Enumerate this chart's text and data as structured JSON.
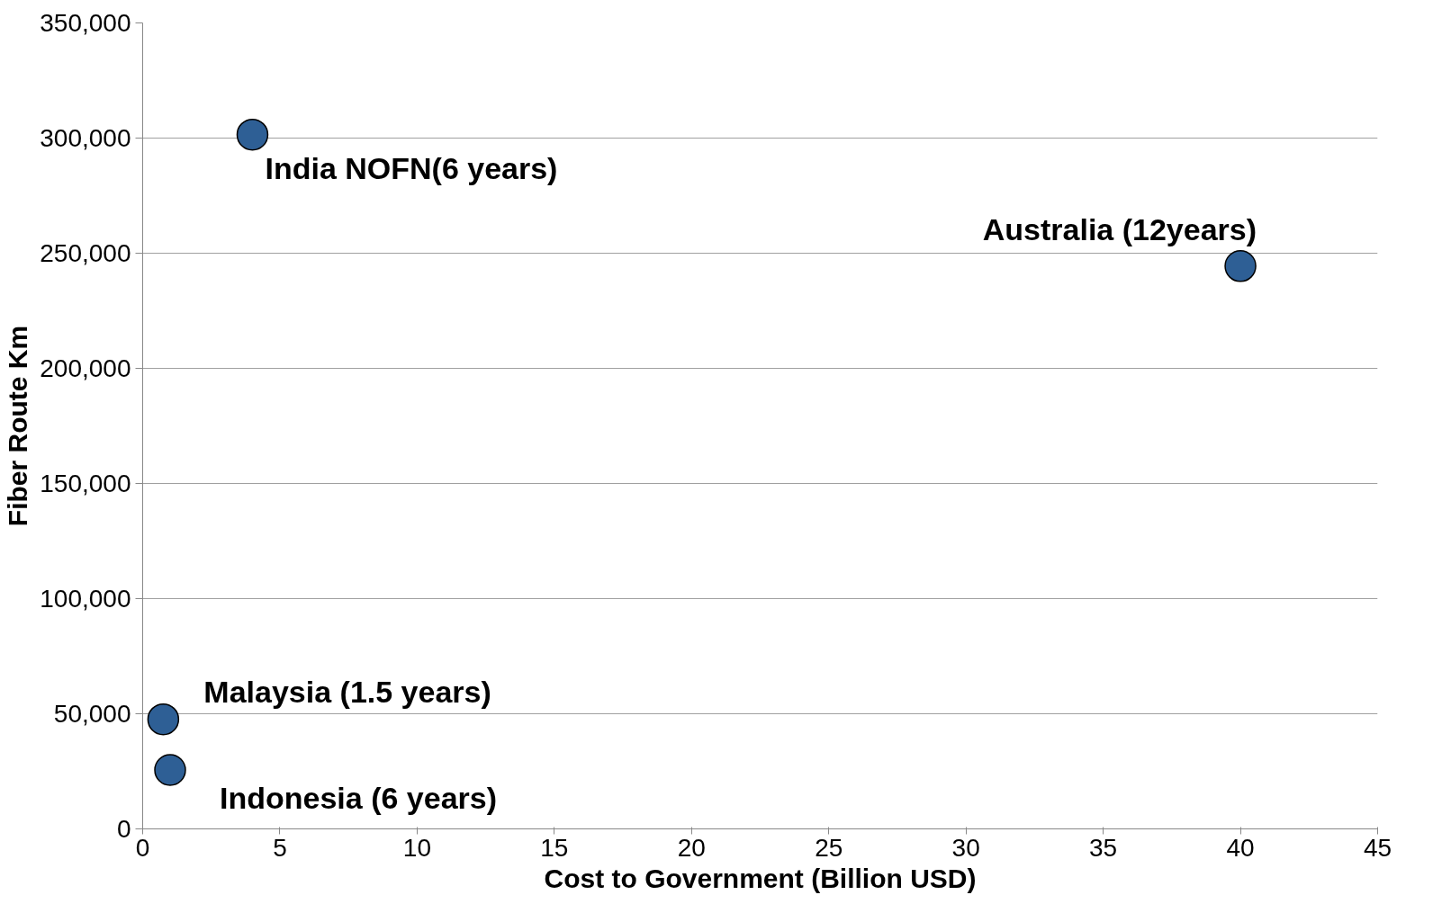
{
  "chart_data": {
    "type": "scatter",
    "xlabel": "Cost to Government (Billion USD)",
    "ylabel": "Fiber Route Km",
    "x": [
      4,
      40,
      0.75,
      1
    ],
    "values": [
      301500,
      244400,
      47600,
      25600
    ],
    "color": "#2e5f95",
    "marker": "circle",
    "xlim": [
      0,
      45
    ],
    "xticks": [
      0,
      5,
      10,
      15,
      20,
      25,
      30,
      35,
      40,
      45
    ],
    "ylim": [
      0,
      350000
    ],
    "yticks": [
      {
        "value": 0,
        "label": "0"
      },
      {
        "value": 50000,
        "label": "50,000"
      },
      {
        "value": 100000,
        "label": "100,000"
      },
      {
        "value": 150000,
        "label": "150,000"
      },
      {
        "value": 200000,
        "label": "200,000"
      },
      {
        "value": 250000,
        "label": "250,000"
      },
      {
        "value": 300000,
        "label": "300,000"
      },
      {
        "value": 350000,
        "label": "350,000"
      }
    ],
    "grid": "y",
    "annotations": [
      {
        "text": "India  NOFN(6 years)",
        "x": 4,
        "y": 301500
      },
      {
        "text": "Australia (12years)",
        "x": 40,
        "y": 244400
      },
      {
        "text": "Malaysia (1.5 years)",
        "x": 0.75,
        "y": 47600
      },
      {
        "text": "Indonesia (6 years)",
        "x": 1,
        "y": 25600
      }
    ]
  }
}
